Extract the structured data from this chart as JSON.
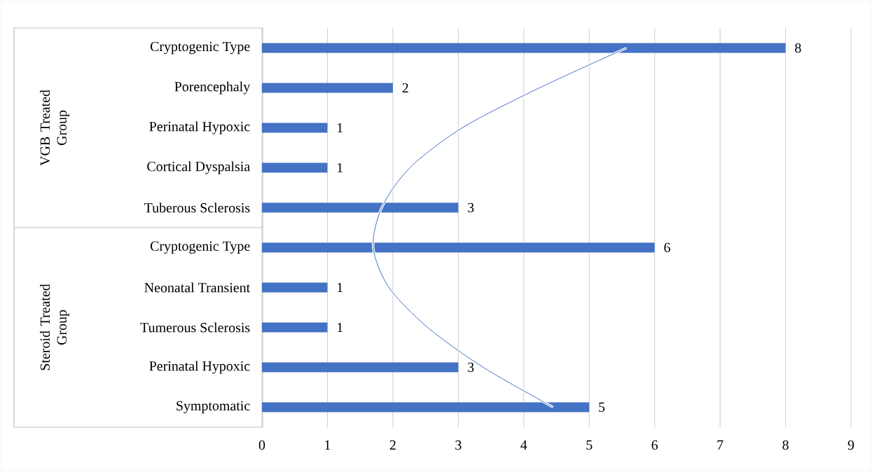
{
  "chart_data": {
    "type": "bar",
    "orientation": "horizontal",
    "categories": [
      "Cryptogenic Type",
      "Porencephaly",
      "Perinatal Hypoxic",
      "Cortical Dyspalsia",
      "Tuberous Sclerosis",
      "Cryptogenic Type",
      "Neonatal Transient",
      "Tumerous Sclerosis",
      "Perinatal Hypoxic",
      "Symptomatic"
    ],
    "series": [
      {
        "color": "#4472c4",
        "values": [
          8,
          2,
          1,
          1,
          3,
          6,
          1,
          1,
          3,
          5
        ],
        "value_labels": [
          "8",
          "2",
          "1",
          "1",
          "3",
          "6",
          "1",
          "1",
          "3",
          "5"
        ]
      },
      {
        "type": "line",
        "color": "#4472c4",
        "values": [
          5.57,
          4.24,
          3.06,
          2.26,
          1.83,
          1.7,
          1.94,
          2.53,
          3.38,
          4.45
        ]
      }
    ],
    "xlim": [
      0,
      9
    ],
    "xticks": [
      0,
      1,
      2,
      3,
      4,
      5,
      6,
      7,
      8,
      9
    ],
    "grid": "x",
    "annotations": [
      "VGB Treated Group",
      "Steroid Treated Group"
    ]
  }
}
